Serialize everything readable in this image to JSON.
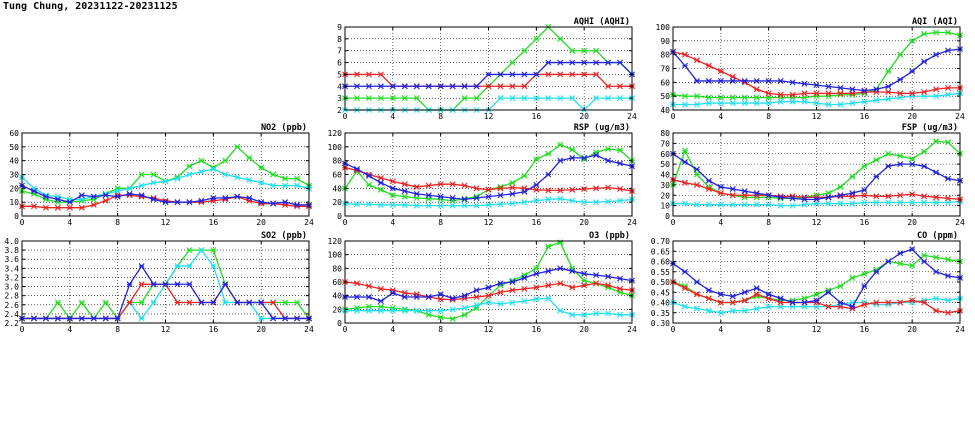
{
  "title": "Tung Chung, 20231122-20231125",
  "colors": {
    "green": "#22dd22",
    "cyan": "#22e0ee",
    "red": "#ee2222",
    "blue": "#2222dd"
  },
  "chart_data": [
    {
      "id": "aqhi",
      "type": "line",
      "title": "AQHI (AQHI)",
      "xlim": [
        0,
        24
      ],
      "xticks": [
        0,
        4,
        8,
        12,
        16,
        20,
        24
      ],
      "ylim": [
        2,
        9
      ],
      "yticks": [
        2,
        3,
        4,
        5,
        6,
        7,
        8,
        9
      ],
      "grid": true,
      "series": [
        {
          "color": "green",
          "values": [
            3,
            3,
            3,
            3,
            3,
            3,
            3,
            2,
            2,
            2,
            3,
            3,
            4,
            5,
            6,
            7,
            8,
            9,
            8,
            7,
            7,
            7,
            6,
            6,
            5
          ]
        },
        {
          "color": "cyan",
          "values": [
            2,
            2,
            2,
            2,
            2,
            2,
            2,
            2,
            2,
            2,
            2,
            2,
            2,
            3,
            3,
            3,
            3,
            3,
            3,
            3,
            2,
            3,
            3,
            3,
            3
          ]
        },
        {
          "color": "red",
          "values": [
            5,
            5,
            5,
            5,
            4,
            4,
            4,
            4,
            4,
            4,
            4,
            4,
            4,
            4,
            4,
            4,
            5,
            5,
            5,
            5,
            5,
            5,
            4,
            4,
            4
          ]
        },
        {
          "color": "blue",
          "values": [
            4,
            4,
            4,
            4,
            4,
            4,
            4,
            4,
            4,
            4,
            4,
            4,
            5,
            5,
            5,
            5,
            5,
            6,
            6,
            6,
            6,
            6,
            6,
            6,
            5
          ]
        }
      ]
    },
    {
      "id": "aqi",
      "type": "line",
      "title": "AQI (AQI)",
      "xlim": [
        0,
        24
      ],
      "xticks": [
        0,
        4,
        8,
        12,
        16,
        20,
        24
      ],
      "ylim": [
        40,
        100
      ],
      "yticks": [
        40,
        50,
        60,
        70,
        80,
        90,
        100
      ],
      "grid": true,
      "series": [
        {
          "color": "green",
          "values": [
            51,
            50,
            50,
            49,
            49,
            49,
            49,
            49,
            49,
            49,
            49,
            49,
            50,
            50,
            51,
            51,
            52,
            55,
            68,
            80,
            90,
            95,
            96,
            96,
            94
          ]
        },
        {
          "color": "cyan",
          "values": [
            44,
            44,
            44,
            45,
            45,
            45,
            45,
            45,
            45,
            46,
            46,
            46,
            45,
            44,
            44,
            45,
            46,
            47,
            48,
            49,
            50,
            50,
            50,
            51,
            52
          ]
        },
        {
          "color": "red",
          "values": [
            82,
            80,
            76,
            72,
            68,
            64,
            60,
            55,
            52,
            51,
            51,
            52,
            52,
            52,
            52,
            52,
            53,
            53,
            53,
            52,
            52,
            53,
            55,
            56,
            56
          ]
        },
        {
          "color": "blue",
          "values": [
            82,
            72,
            61,
            61,
            61,
            61,
            61,
            61,
            61,
            61,
            60,
            59,
            58,
            57,
            56,
            55,
            54,
            55,
            57,
            62,
            68,
            75,
            80,
            83,
            84
          ]
        }
      ]
    },
    {
      "id": "no2",
      "type": "line",
      "title": "NO2 (ppb)",
      "xlim": [
        0,
        24
      ],
      "xticks": [
        0,
        4,
        8,
        12,
        16,
        20,
        24
      ],
      "ylim": [
        0,
        60
      ],
      "yticks": [
        0,
        10,
        20,
        30,
        40,
        50,
        60
      ],
      "grid": true,
      "series": [
        {
          "color": "green",
          "values": [
            18,
            16,
            12,
            10,
            10,
            11,
            12,
            16,
            20,
            20,
            30,
            30,
            25,
            28,
            36,
            40,
            35,
            40,
            50,
            42,
            35,
            30,
            27,
            27,
            22
          ]
        },
        {
          "color": "cyan",
          "values": [
            28,
            20,
            15,
            14,
            12,
            12,
            14,
            16,
            18,
            20,
            22,
            24,
            25,
            27,
            30,
            32,
            34,
            30,
            28,
            26,
            24,
            22,
            22,
            22,
            20
          ]
        },
        {
          "color": "red",
          "values": [
            7,
            7,
            6,
            6,
            6,
            6,
            8,
            11,
            15,
            15,
            14,
            13,
            11,
            10,
            10,
            10,
            11,
            12,
            14,
            11,
            9,
            9,
            8,
            7,
            7
          ]
        },
        {
          "color": "blue",
          "values": [
            22,
            18,
            14,
            12,
            10,
            15,
            14,
            15,
            14,
            16,
            15,
            12,
            10,
            10,
            10,
            11,
            13,
            13,
            14,
            13,
            10,
            9,
            10,
            8,
            8
          ]
        }
      ]
    },
    {
      "id": "rsp",
      "type": "line",
      "title": "RSP (ug/m3)",
      "xlim": [
        0,
        24
      ],
      "xticks": [
        0,
        4,
        8,
        12,
        16,
        20,
        24
      ],
      "ylim": [
        0,
        120
      ],
      "yticks": [
        0,
        20,
        40,
        60,
        80,
        100,
        120
      ],
      "grid": true,
      "series": [
        {
          "color": "green",
          "values": [
            40,
            65,
            45,
            38,
            30,
            28,
            26,
            25,
            24,
            22,
            25,
            28,
            38,
            42,
            48,
            58,
            82,
            90,
            103,
            96,
            82,
            92,
            97,
            95,
            80
          ]
        },
        {
          "color": "cyan",
          "values": [
            18,
            17,
            17,
            16,
            16,
            16,
            15,
            15,
            15,
            15,
            15,
            15,
            16,
            17,
            18,
            20,
            22,
            24,
            25,
            22,
            20,
            20,
            21,
            22,
            24
          ]
        },
        {
          "color": "red",
          "values": [
            70,
            66,
            60,
            55,
            50,
            46,
            42,
            44,
            46,
            46,
            44,
            40,
            38,
            40,
            41,
            40,
            38,
            37,
            37,
            38,
            39,
            40,
            41,
            39,
            36
          ]
        },
        {
          "color": "blue",
          "values": [
            76,
            68,
            58,
            48,
            40,
            36,
            32,
            30,
            28,
            26,
            24,
            26,
            28,
            30,
            32,
            35,
            45,
            60,
            80,
            84,
            84,
            88,
            80,
            76,
            72
          ]
        }
      ]
    },
    {
      "id": "fsp",
      "type": "line",
      "title": "FSP (ug/m3)",
      "xlim": [
        0,
        24
      ],
      "xticks": [
        0,
        4,
        8,
        12,
        16,
        20,
        24
      ],
      "ylim": [
        0,
        80
      ],
      "yticks": [
        0,
        10,
        20,
        30,
        40,
        50,
        60,
        70,
        80
      ],
      "grid": true,
      "series": [
        {
          "color": "green",
          "values": [
            30,
            63,
            40,
            28,
            22,
            20,
            18,
            18,
            18,
            17,
            17,
            18,
            20,
            22,
            28,
            38,
            48,
            54,
            60,
            58,
            55,
            62,
            72,
            71,
            60
          ]
        },
        {
          "color": "cyan",
          "values": [
            12,
            12,
            11,
            11,
            11,
            11,
            11,
            11,
            11,
            10,
            10,
            11,
            12,
            12,
            12,
            12,
            13,
            13,
            13,
            13,
            13,
            13,
            13,
            13,
            14
          ]
        },
        {
          "color": "red",
          "values": [
            35,
            32,
            30,
            26,
            22,
            20,
            20,
            20,
            20,
            19,
            19,
            18,
            18,
            18,
            19,
            19,
            20,
            19,
            19,
            20,
            21,
            19,
            18,
            17,
            16
          ]
        },
        {
          "color": "blue",
          "values": [
            60,
            52,
            45,
            34,
            28,
            26,
            24,
            22,
            20,
            18,
            17,
            16,
            16,
            18,
            20,
            22,
            25,
            38,
            48,
            50,
            50,
            48,
            42,
            36,
            34
          ]
        }
      ]
    },
    {
      "id": "so2",
      "type": "line",
      "title": "SO2 (ppb)",
      "xlim": [
        0,
        24
      ],
      "xticks": [
        0,
        4,
        8,
        12,
        16,
        20,
        24
      ],
      "ylim": [
        2.2,
        4.0
      ],
      "yticks": [
        2.2,
        2.4,
        2.6,
        2.8,
        3.0,
        3.2,
        3.4,
        3.6,
        3.8,
        4.0
      ],
      "grid": true,
      "series": [
        {
          "color": "green",
          "values": [
            2.3,
            2.3,
            2.3,
            2.65,
            2.3,
            2.65,
            2.3,
            2.65,
            2.3,
            2.65,
            2.65,
            3.05,
            3.05,
            3.45,
            3.8,
            3.8,
            3.8,
            3.05,
            2.65,
            2.65,
            2.65,
            2.65,
            2.65,
            2.65,
            2.3
          ]
        },
        {
          "color": "cyan",
          "values": [
            2.3,
            2.3,
            2.3,
            2.3,
            2.3,
            2.3,
            2.3,
            2.3,
            2.3,
            2.65,
            2.3,
            2.65,
            3.05,
            3.45,
            3.45,
            3.8,
            3.45,
            2.65,
            2.65,
            2.65,
            2.3,
            2.3,
            2.3,
            2.3,
            2.3
          ]
        },
        {
          "color": "red",
          "values": [
            2.3,
            2.3,
            2.3,
            2.3,
            2.3,
            2.3,
            2.3,
            2.3,
            2.3,
            2.65,
            3.05,
            3.05,
            3.05,
            2.65,
            2.65,
            2.65,
            2.65,
            3.05,
            2.65,
            2.65,
            2.65,
            2.65,
            2.3,
            2.3,
            2.3
          ]
        },
        {
          "color": "blue",
          "values": [
            2.3,
            2.3,
            2.3,
            2.3,
            2.3,
            2.3,
            2.3,
            2.3,
            2.3,
            3.05,
            3.45,
            3.05,
            3.05,
            3.05,
            3.05,
            2.65,
            2.65,
            3.05,
            2.65,
            2.65,
            2.65,
            2.3,
            2.3,
            2.3,
            2.3
          ]
        }
      ]
    },
    {
      "id": "o3",
      "type": "line",
      "title": "O3 (ppb)",
      "xlim": [
        0,
        24
      ],
      "xticks": [
        0,
        4,
        8,
        12,
        16,
        20,
        24
      ],
      "ylim": [
        0,
        120
      ],
      "yticks": [
        0,
        20,
        40,
        60,
        80,
        100,
        120
      ],
      "grid": true,
      "series": [
        {
          "color": "green",
          "values": [
            20,
            22,
            24,
            24,
            22,
            20,
            18,
            12,
            8,
            6,
            12,
            22,
            40,
            55,
            62,
            70,
            80,
            112,
            118,
            80,
            62,
            58,
            52,
            45,
            40
          ]
        },
        {
          "color": "cyan",
          "values": [
            18,
            18,
            18,
            18,
            18,
            18,
            18,
            18,
            18,
            20,
            22,
            26,
            30,
            28,
            30,
            32,
            35,
            36,
            18,
            12,
            12,
            14,
            14,
            12,
            12
          ]
        },
        {
          "color": "red",
          "values": [
            60,
            58,
            54,
            50,
            48,
            44,
            42,
            38,
            35,
            34,
            36,
            38,
            40,
            45,
            48,
            50,
            52,
            55,
            58,
            52,
            55,
            58,
            55,
            50,
            48
          ]
        },
        {
          "color": "blue",
          "values": [
            38,
            38,
            38,
            32,
            44,
            38,
            38,
            38,
            42,
            36,
            40,
            48,
            52,
            58,
            60,
            66,
            72,
            76,
            80,
            76,
            72,
            70,
            68,
            65,
            62
          ]
        }
      ]
    },
    {
      "id": "co",
      "type": "line",
      "title": "CO (ppm)",
      "xlim": [
        0,
        24
      ],
      "xticks": [
        0,
        4,
        8,
        12,
        16,
        20,
        24
      ],
      "ylim": [
        0.3,
        0.7
      ],
      "yticks": [
        0.3,
        0.35,
        0.4,
        0.45,
        0.5,
        0.55,
        0.6,
        0.65,
        0.7
      ],
      "grid": true,
      "series": [
        {
          "color": "green",
          "values": [
            0.5,
            0.48,
            0.44,
            0.42,
            0.4,
            0.4,
            0.41,
            0.43,
            0.42,
            0.41,
            0.41,
            0.42,
            0.44,
            0.46,
            0.48,
            0.52,
            0.54,
            0.56,
            0.6,
            0.59,
            0.58,
            0.63,
            0.62,
            0.61,
            0.6
          ]
        },
        {
          "color": "cyan",
          "values": [
            0.4,
            0.38,
            0.37,
            0.36,
            0.35,
            0.36,
            0.36,
            0.37,
            0.38,
            0.38,
            0.38,
            0.38,
            0.38,
            0.38,
            0.39,
            0.4,
            0.4,
            0.39,
            0.39,
            0.4,
            0.4,
            0.41,
            0.42,
            0.41,
            0.42
          ]
        },
        {
          "color": "red",
          "values": [
            0.5,
            0.47,
            0.44,
            0.42,
            0.4,
            0.4,
            0.41,
            0.44,
            0.42,
            0.4,
            0.4,
            0.4,
            0.4,
            0.38,
            0.38,
            0.37,
            0.39,
            0.4,
            0.4,
            0.4,
            0.41,
            0.4,
            0.36,
            0.35,
            0.36
          ]
        },
        {
          "color": "blue",
          "values": [
            0.59,
            0.55,
            0.5,
            0.46,
            0.44,
            0.43,
            0.45,
            0.47,
            0.44,
            0.42,
            0.4,
            0.4,
            0.41,
            0.45,
            0.4,
            0.38,
            0.48,
            0.55,
            0.6,
            0.64,
            0.66,
            0.6,
            0.55,
            0.53,
            0.52
          ]
        }
      ]
    }
  ]
}
